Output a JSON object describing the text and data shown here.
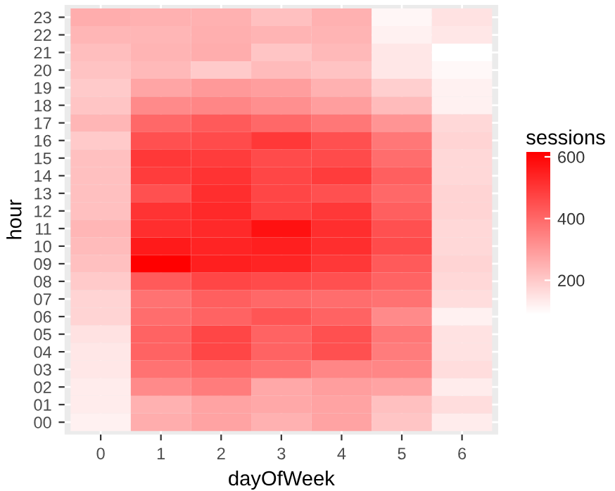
{
  "chart_data": {
    "type": "heatmap",
    "xlabel": "dayOfWeek",
    "ylabel": "hour",
    "clabel": "sessions",
    "categories": [
      "0",
      "1",
      "2",
      "3",
      "4",
      "5",
      "6"
    ],
    "y_categories": [
      "23",
      "22",
      "21",
      "20",
      "19",
      "18",
      "17",
      "16",
      "15",
      "14",
      "13",
      "12",
      "11",
      "10",
      "09",
      "08",
      "07",
      "06",
      "05",
      "04",
      "03",
      "02",
      "01",
      "00"
    ],
    "cells": [
      [
        260,
        250,
        250,
        220,
        250,
        110,
        150
      ],
      [
        240,
        240,
        255,
        245,
        245,
        120,
        140
      ],
      [
        225,
        245,
        260,
        210,
        235,
        140,
        90
      ],
      [
        215,
        235,
        200,
        230,
        215,
        140,
        105
      ],
      [
        200,
        275,
        300,
        290,
        250,
        190,
        120
      ],
      [
        210,
        330,
        340,
        320,
        290,
        230,
        120
      ],
      [
        240,
        400,
        430,
        400,
        370,
        310,
        170
      ],
      [
        200,
        450,
        460,
        500,
        450,
        370,
        180
      ],
      [
        220,
        500,
        490,
        460,
        460,
        390,
        170
      ],
      [
        220,
        490,
        510,
        470,
        490,
        420,
        170
      ],
      [
        220,
        450,
        520,
        470,
        450,
        400,
        180
      ],
      [
        220,
        510,
        530,
        480,
        500,
        420,
        180
      ],
      [
        240,
        520,
        530,
        580,
        520,
        450,
        170
      ],
      [
        230,
        560,
        540,
        550,
        520,
        460,
        170
      ],
      [
        220,
        615,
        550,
        540,
        500,
        430,
        180
      ],
      [
        200,
        430,
        470,
        460,
        450,
        410,
        170
      ],
      [
        180,
        380,
        420,
        400,
        390,
        380,
        160
      ],
      [
        180,
        390,
        410,
        440,
        410,
        330,
        120
      ],
      [
        150,
        410,
        470,
        410,
        450,
        370,
        150
      ],
      [
        140,
        410,
        470,
        410,
        450,
        360,
        150
      ],
      [
        140,
        380,
        400,
        380,
        340,
        340,
        160
      ],
      [
        130,
        330,
        360,
        270,
        290,
        280,
        130
      ],
      [
        130,
        250,
        280,
        270,
        280,
        220,
        160
      ],
      [
        120,
        260,
        280,
        250,
        280,
        210,
        130
      ]
    ],
    "clim": [
      90,
      615
    ],
    "cticks": [
      200,
      400,
      600
    ],
    "grid": true
  }
}
